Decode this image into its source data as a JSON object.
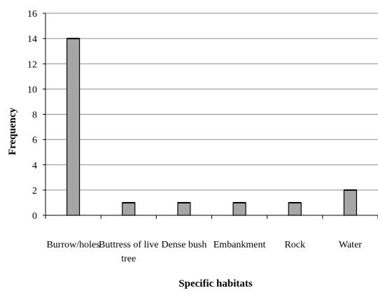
{
  "chart_data": {
    "type": "bar",
    "title": "",
    "xlabel": "Specific habitats",
    "ylabel": "Frequency",
    "categories": [
      [
        "Burrow/holes"
      ],
      [
        "Buttress of live",
        "tree"
      ],
      [
        "Dense bush"
      ],
      [
        "Embankment"
      ],
      [
        "Rock"
      ],
      [
        "Water"
      ]
    ],
    "values": [
      14,
      1,
      1,
      1,
      1,
      2
    ],
    "ylim": [
      0,
      16
    ],
    "yticks": [
      "0",
      "2",
      "4",
      "6",
      "8",
      "10",
      "12",
      "14",
      "16"
    ],
    "grid": true,
    "legend": "none",
    "bar_color": "#a6a6a6",
    "bar_outline": "#000000",
    "grid_color": "#8c8c8c"
  }
}
